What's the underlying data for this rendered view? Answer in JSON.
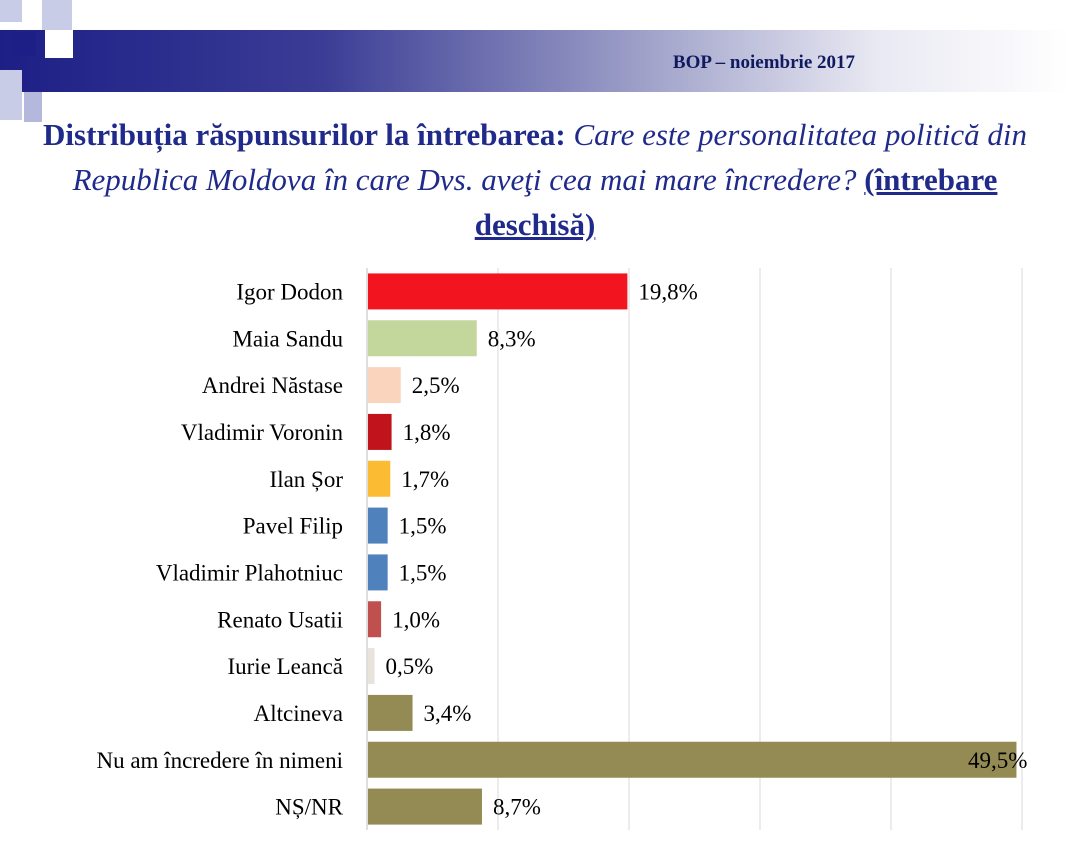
{
  "header": {
    "subtitle": "BOP – noiembrie 2017",
    "title_bold": "Distribuția răspunsurilor la întrebarea:",
    "title_italic": "Care este personalitatea politică din Republica Moldova în care Dvs. aveţi cea mai mare încredere?",
    "title_note": "(întrebare deschisă)"
  },
  "chart_data": {
    "type": "bar",
    "orientation": "horizontal",
    "categories": [
      "Igor Dodon",
      "Maia Sandu",
      "Andrei Năstase",
      "Vladimir Voronin",
      "Ilan Șor",
      "Pavel Filip",
      "Vladimir Plahotniuc",
      "Renato Usatii",
      "Iurie Leancă",
      "Altcineva",
      "Nu am încredere în nimeni",
      "NȘ/NR"
    ],
    "values": [
      19.8,
      8.3,
      2.5,
      1.8,
      1.7,
      1.5,
      1.5,
      1.0,
      0.5,
      3.4,
      49.5,
      8.7
    ],
    "value_labels": [
      "19,8%",
      "8,3%",
      "2,5%",
      "1,8%",
      "1,7%",
      "1,5%",
      "1,5%",
      "1,0%",
      "0,5%",
      "3,4%",
      "49,5%",
      "8,7%"
    ],
    "colors": [
      "#f2141e",
      "#c3d69b",
      "#fad4bc",
      "#c0131b",
      "#fbbb33",
      "#4f81bd",
      "#4f81bd",
      "#c0504d",
      "#e8e4dc",
      "#948a54",
      "#948a54",
      "#948a54"
    ],
    "xlim": [
      0,
      50
    ],
    "grid": true,
    "legend": "none"
  }
}
